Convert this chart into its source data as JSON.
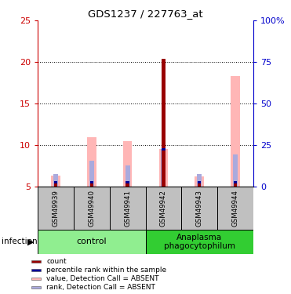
{
  "title": "GDS1237 / 227763_at",
  "samples": [
    "GSM49939",
    "GSM49940",
    "GSM49941",
    "GSM49942",
    "GSM49943",
    "GSM49944"
  ],
  "group_labels": [
    "control",
    "Anaplasma\nphagocytophilum"
  ],
  "ylim_left": [
    5,
    25
  ],
  "ylim_right": [
    0,
    100
  ],
  "yticks_left": [
    5,
    10,
    15,
    20,
    25
  ],
  "yticks_right": [
    0,
    25,
    50,
    75,
    100
  ],
  "ytick_labels_right": [
    "0",
    "25",
    "50",
    "75",
    "100%"
  ],
  "count_values": [
    5.5,
    5.5,
    5.5,
    20.4,
    5.5,
    5.5
  ],
  "pink_bar_tops": [
    6.3,
    11.0,
    10.5,
    9.5,
    6.2,
    18.3
  ],
  "blue_bar_tops": [
    6.5,
    8.1,
    7.6,
    9.5,
    6.5,
    8.9
  ],
  "percentile_tops": [
    5.5,
    5.5,
    5.5,
    9.5,
    5.5,
    5.5
  ],
  "bar_bottom": 5.0,
  "count_color": "#990000",
  "pink_color": "#FFB6B6",
  "blue_color": "#AAAADD",
  "percentile_color": "#000099",
  "bw_pink": 0.25,
  "bw_blue": 0.13,
  "bw_count": 0.1,
  "bw_pct": 0.1,
  "left_tick_color": "#CC0000",
  "right_tick_color": "#0000CC",
  "sample_bg": "#C0C0C0",
  "group_bg_control": "#90EE90",
  "group_bg_anaplasma": "#32CD32",
  "legend_labels": [
    "count",
    "percentile rank within the sample",
    "value, Detection Call = ABSENT",
    "rank, Detection Call = ABSENT"
  ],
  "legend_colors": [
    "#990000",
    "#000099",
    "#FFB6B6",
    "#AAAADD"
  ]
}
